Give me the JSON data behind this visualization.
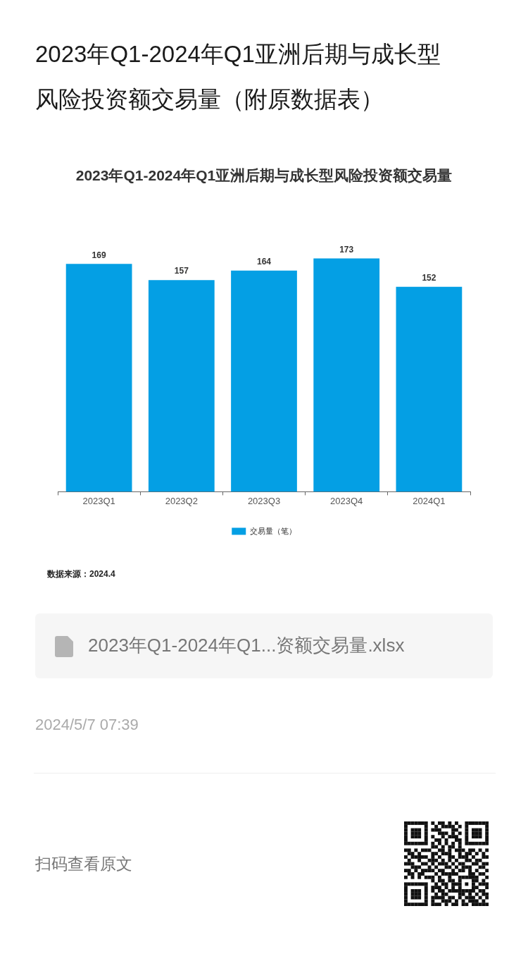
{
  "chart_data": {
    "type": "bar",
    "title": "2023年Q1-2024年Q1亚洲后期与成长型风险投资额交易量（附原数据表）",
    "subtitle": "2023年Q1-2024年Q1亚洲后期与成长型风险投资额交易量",
    "categories": [
      "2023Q1",
      "2023Q2",
      "2023Q3",
      "2023Q4",
      "2024Q1"
    ],
    "series": [
      {
        "name": "交易量（笔）",
        "color": "#049fe4",
        "values": [
          169,
          157,
          164,
          173,
          152
        ]
      }
    ],
    "data_labels": true,
    "legend": "bottom",
    "annotations": [
      "数据来源：2024.4",
      "2023年Q1-2024年Q1...资额交易量.xlsx",
      "2024/5/7 07:39",
      "扫码查看原文"
    ]
  }
}
